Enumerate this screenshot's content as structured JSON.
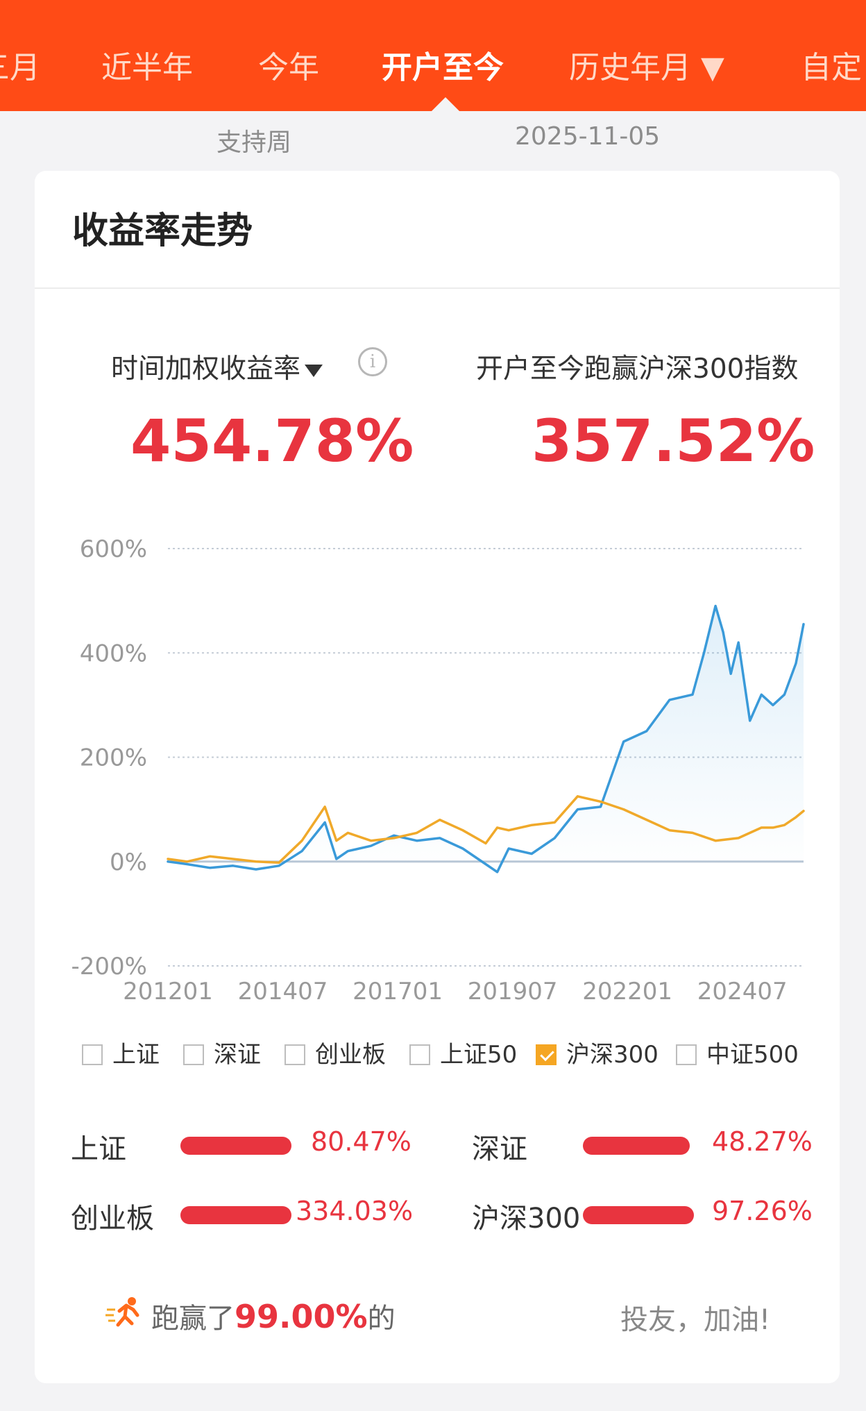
{
  "tabs": [
    {
      "label": "三月"
    },
    {
      "label": "近半年"
    },
    {
      "label": "今年"
    },
    {
      "label": "开户至今",
      "active": true
    },
    {
      "label": "历史年月 ▼"
    },
    {
      "label": "自定"
    }
  ],
  "subrow": {
    "left": "支持周",
    "date": "2025-11-05"
  },
  "card": {
    "title": "收益率走势",
    "metric_left_label": "时间加权收益率",
    "metric_left_value": "454.78%",
    "metric_right_label": "开户至今跑赢沪深300指数",
    "metric_right_value": "357.52%",
    "info_glyph": "i"
  },
  "legend": [
    {
      "label": "上证",
      "checked": false
    },
    {
      "label": "深证",
      "checked": false
    },
    {
      "label": "创业板",
      "checked": false
    },
    {
      "label": "上证50",
      "checked": false
    },
    {
      "label": "沪深300",
      "checked": true
    },
    {
      "label": "中证500",
      "checked": false
    }
  ],
  "comparison": [
    {
      "label": "上证",
      "value": "80.47%",
      "fraction": 1.0
    },
    {
      "label": "深证",
      "value": "48.27%",
      "fraction": 0.96
    },
    {
      "label": "创业板",
      "value": "334.03%",
      "fraction": 1.0
    },
    {
      "label": "沪深300",
      "value": "97.26%",
      "fraction": 1.0
    }
  ],
  "footer": {
    "prefix": "跑赢了",
    "percent": "99.00%",
    "suffix": "的",
    "right": "投友，加油!"
  },
  "icons": {
    "runner": "runner-icon",
    "info": "info-icon",
    "caret": "caret-down-icon"
  },
  "colors": {
    "brand": "#ff4b16",
    "value_red": "#e8343f",
    "account_line": "#3a9ad9",
    "benchmark_line": "#f0a92a",
    "checkbox_checked": "#f5a623"
  },
  "chart_data": {
    "type": "line",
    "y_ticks": [
      "600%",
      "400%",
      "200%",
      "0%",
      "-200%"
    ],
    "x_ticks": [
      "201201",
      "201407",
      "201701",
      "201907",
      "202201",
      "202407"
    ],
    "ylim": [
      -200,
      600
    ],
    "x_range": [
      "2012-01",
      "2025-11"
    ],
    "grid": true,
    "series": [
      {
        "name": "",
        "color": "#3a9ad9",
        "area_fill": true,
        "points": [
          [
            "2012-01",
            0
          ],
          [
            "2012-06",
            -5
          ],
          [
            "2012-12",
            -12
          ],
          [
            "2013-06",
            -8
          ],
          [
            "2013-12",
            -15
          ],
          [
            "2014-06",
            -8
          ],
          [
            "2014-12",
            20
          ],
          [
            "2015-06",
            75
          ],
          [
            "2015-09",
            5
          ],
          [
            "2015-12",
            20
          ],
          [
            "2016-06",
            30
          ],
          [
            "2016-12",
            50
          ],
          [
            "2017-06",
            40
          ],
          [
            "2017-12",
            45
          ],
          [
            "2018-06",
            25
          ],
          [
            "2018-12",
            -5
          ],
          [
            "2019-03",
            -20
          ],
          [
            "2019-06",
            25
          ],
          [
            "2019-12",
            15
          ],
          [
            "2020-06",
            45
          ],
          [
            "2020-12",
            100
          ],
          [
            "2021-06",
            105
          ],
          [
            "2021-12",
            230
          ],
          [
            "2022-06",
            250
          ],
          [
            "2022-12",
            310
          ],
          [
            "2023-06",
            320
          ],
          [
            "2023-09",
            400
          ],
          [
            "2023-12",
            490
          ],
          [
            "2024-02",
            440
          ],
          [
            "2024-04",
            360
          ],
          [
            "2024-06",
            420
          ],
          [
            "2024-09",
            270
          ],
          [
            "2024-12",
            320
          ],
          [
            "2025-03",
            300
          ],
          [
            "2025-06",
            320
          ],
          [
            "2025-09",
            380
          ],
          [
            "2025-11",
            455
          ]
        ]
      },
      {
        "name": "沪深300",
        "color": "#f0a92a",
        "points": [
          [
            "2012-01",
            5
          ],
          [
            "2012-06",
            0
          ],
          [
            "2012-12",
            10
          ],
          [
            "2013-06",
            5
          ],
          [
            "2013-12",
            0
          ],
          [
            "2014-06",
            -2
          ],
          [
            "2014-12",
            40
          ],
          [
            "2015-06",
            105
          ],
          [
            "2015-09",
            40
          ],
          [
            "2015-12",
            55
          ],
          [
            "2016-06",
            40
          ],
          [
            "2016-12",
            45
          ],
          [
            "2017-06",
            55
          ],
          [
            "2017-12",
            80
          ],
          [
            "2018-06",
            60
          ],
          [
            "2018-12",
            35
          ],
          [
            "2019-03",
            65
          ],
          [
            "2019-06",
            60
          ],
          [
            "2019-12",
            70
          ],
          [
            "2020-06",
            75
          ],
          [
            "2020-12",
            125
          ],
          [
            "2021-06",
            115
          ],
          [
            "2021-12",
            100
          ],
          [
            "2022-06",
            80
          ],
          [
            "2022-12",
            60
          ],
          [
            "2023-06",
            55
          ],
          [
            "2023-12",
            40
          ],
          [
            "2024-06",
            45
          ],
          [
            "2024-09",
            55
          ],
          [
            "2024-12",
            65
          ],
          [
            "2025-03",
            65
          ],
          [
            "2025-06",
            70
          ],
          [
            "2025-09",
            85
          ],
          [
            "2025-11",
            97
          ]
        ]
      }
    ]
  }
}
